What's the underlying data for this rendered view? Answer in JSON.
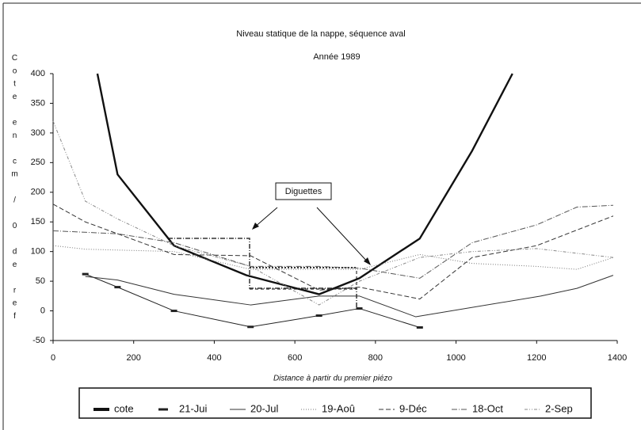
{
  "chart_data": {
    "type": "line",
    "title": "Niveau statique de la nappe, séquence aval",
    "subtitle": "Année 1989",
    "y_label": "Cote en cm / 0 de ref",
    "x_label": "Distance à partir du premier piézo",
    "annotation": "Diguettes",
    "xlim": [
      0,
      1400
    ],
    "xticks": [
      0,
      200,
      400,
      600,
      800,
      1000,
      1200,
      1400
    ],
    "ylim": [
      -50,
      400
    ],
    "yticks": [
      -50,
      0,
      50,
      100,
      150,
      200,
      250,
      300,
      350,
      400
    ],
    "series": [
      {
        "name": "cote",
        "color": "#111111",
        "x": [
          110,
          160,
          300,
          480,
          660,
          760,
          910,
          1040,
          1140
        ],
        "values": [
          400,
          230,
          110,
          60,
          28,
          55,
          122,
          270,
          400
        ]
      },
      {
        "name": "21-Jui",
        "color": "#222222",
        "x": [
          80,
          160,
          300,
          490,
          660,
          760,
          910
        ],
        "values": [
          62,
          40,
          0,
          -27,
          -8,
          4,
          -28
        ]
      },
      {
        "name": "20-Jul",
        "color": "#333333",
        "x": [
          80,
          160,
          300,
          490,
          660,
          760,
          900,
          1210,
          1300,
          1390
        ],
        "values": [
          58,
          52,
          28,
          10,
          25,
          25,
          -10,
          25,
          38,
          60
        ]
      },
      {
        "name": "19-Aoû",
        "color": "#777777",
        "x": [
          0,
          80,
          300,
          490,
          660,
          760,
          910,
          1040,
          1200,
          1300,
          1390
        ],
        "values": [
          110,
          104,
          100,
          70,
          70,
          70,
          95,
          80,
          75,
          70,
          90
        ]
      },
      {
        "name": "9-Déc",
        "color": "#333333",
        "x": [
          0,
          80,
          300,
          490,
          660,
          760,
          910,
          1040,
          1200,
          1390
        ],
        "values": [
          180,
          150,
          95,
          93,
          35,
          40,
          20,
          90,
          110,
          160
        ]
      },
      {
        "name": "18-Oct",
        "color": "#555555",
        "x": [
          0,
          160,
          300,
          490,
          660,
          760,
          910,
          1040,
          1200,
          1300,
          1390
        ],
        "values": [
          135,
          130,
          115,
          75,
          75,
          72,
          55,
          115,
          145,
          175,
          178
        ]
      },
      {
        "name": "2-Sep",
        "color": "#888888",
        "x": [
          0,
          80,
          160,
          300,
          490,
          660,
          760,
          910,
          1040,
          1200,
          1390
        ],
        "values": [
          320,
          185,
          155,
          110,
          75,
          10,
          50,
          90,
          100,
          105,
          90
        ]
      }
    ]
  }
}
